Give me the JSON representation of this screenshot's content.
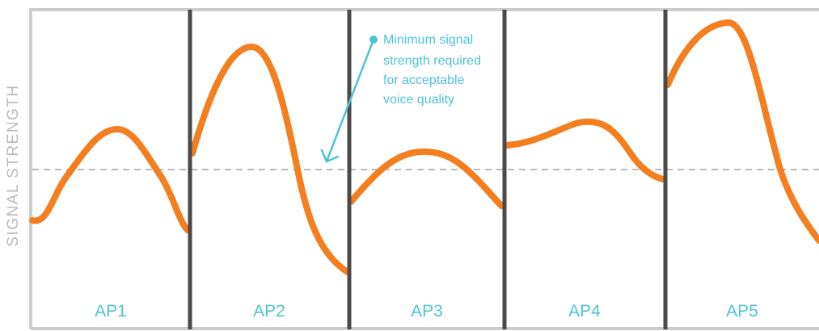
{
  "diagram": {
    "y_axis_label": "SIGNAL STRENGTH",
    "annotation_lines": [
      "Minimum signal",
      "strength required",
      "for acceptable",
      "voice quality"
    ],
    "access_points": [
      "AP1",
      "AP2",
      "AP3",
      "AP4",
      "AP5"
    ],
    "threshold_line": "dashed",
    "colors": {
      "curve": "#f47e20",
      "text_accent": "#4fc3d6",
      "divider": "#4a4a4a",
      "frame": "#cccccc",
      "threshold": "#bbbbbb"
    }
  }
}
